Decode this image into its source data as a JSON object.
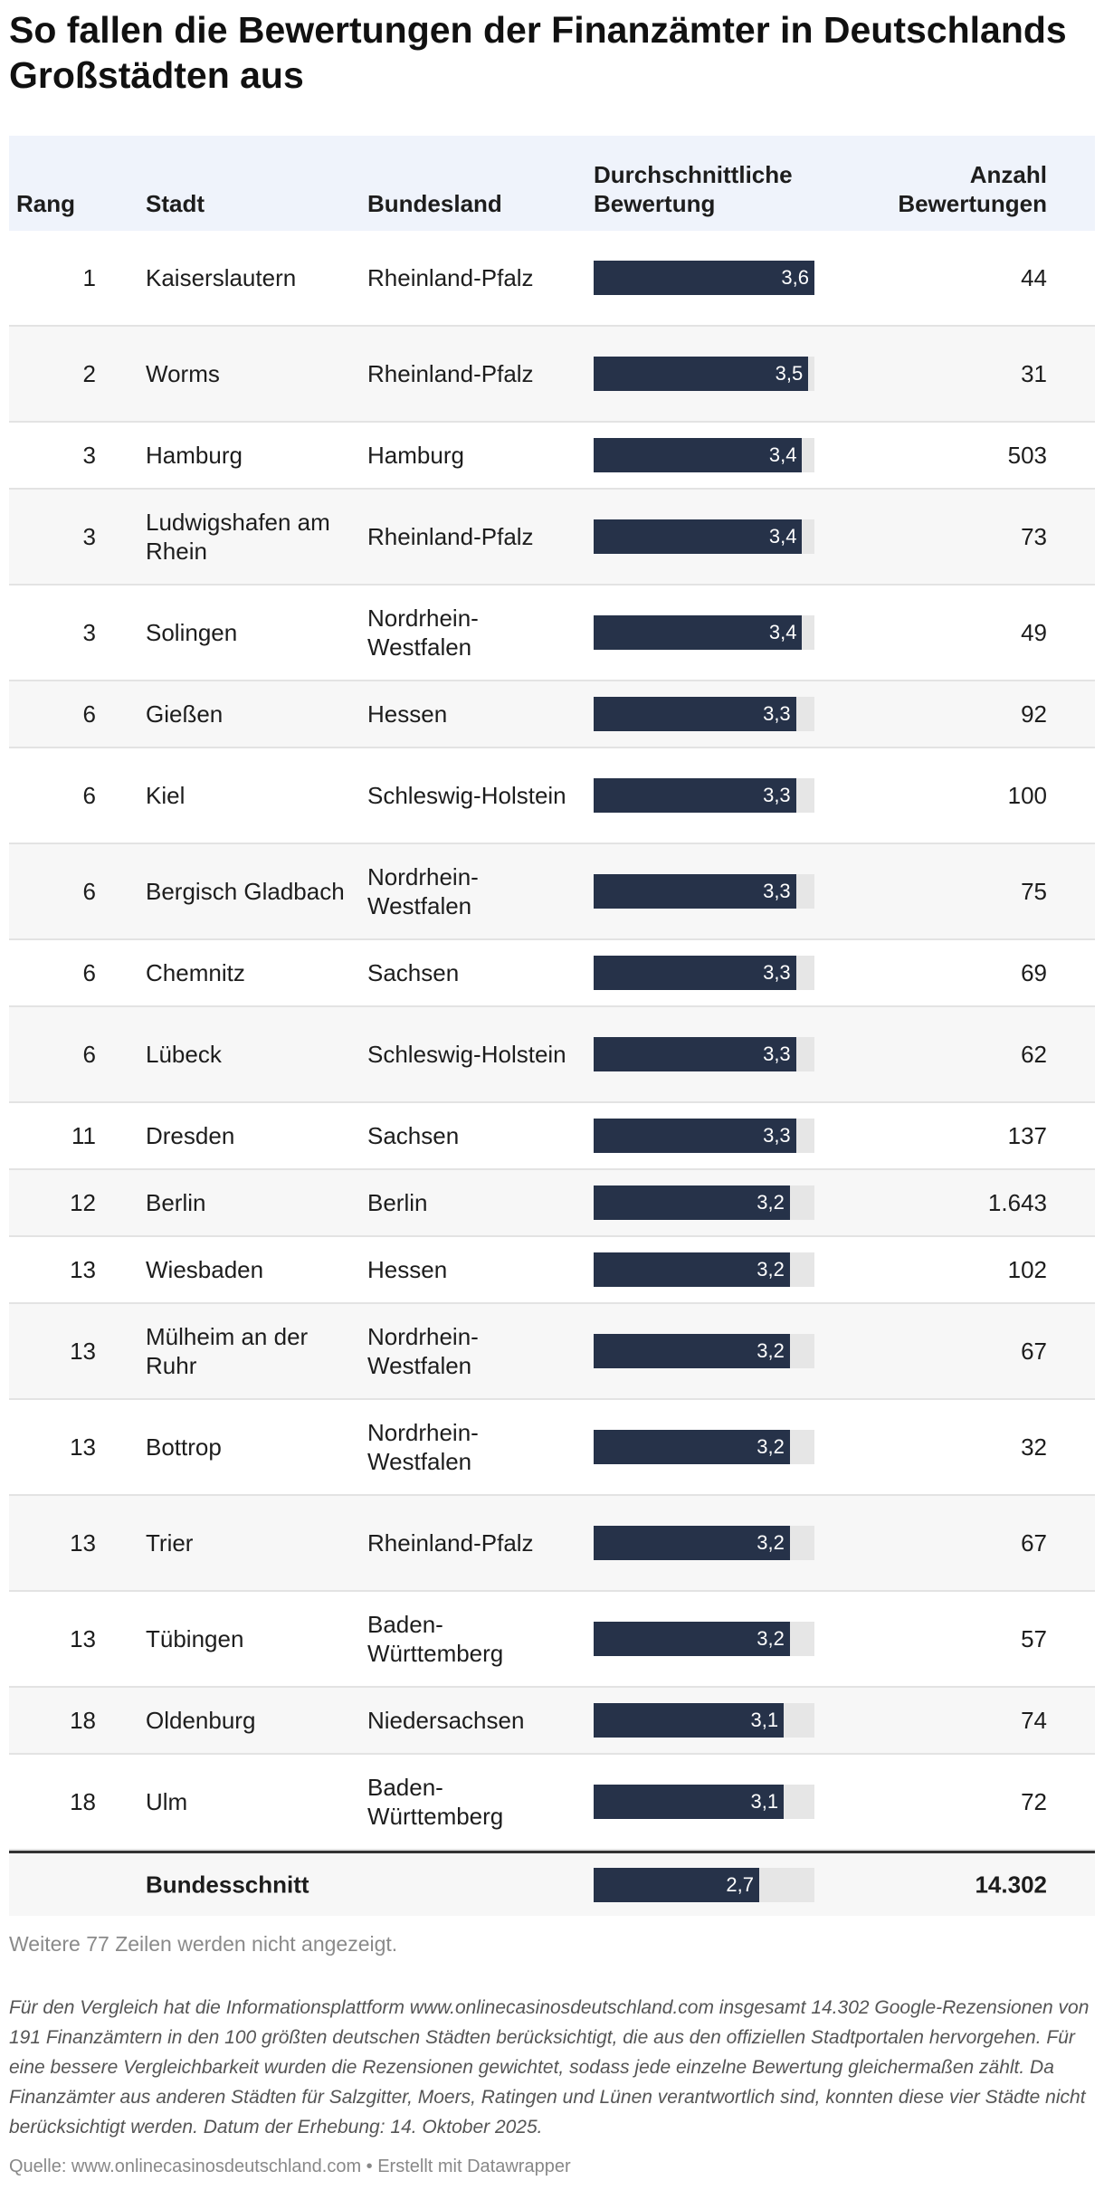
{
  "title": "So fallen die Bewertungen der Finanzämter in Deutschlands Großstädten aus",
  "columns": {
    "rang": "Rang",
    "stadt": "Stadt",
    "bundesland": "Bundesland",
    "bewertung": "Durchschnittliche Bewertung",
    "anzahl": "Anzahl Bewertungen"
  },
  "chart_data": {
    "type": "table",
    "xlim": [
      0,
      3.6
    ],
    "bar_color": "#263249",
    "bar_bg": "#e6e6e6",
    "header_bg": "#eff3fb",
    "rows": [
      {
        "rang": "1",
        "stadt": "Kaiserslautern",
        "bundesland": "Rheinland-Pfalz",
        "bewertung": 3.6,
        "label": "3,6",
        "anzahl": "44"
      },
      {
        "rang": "2",
        "stadt": "Worms",
        "bundesland": "Rheinland-Pfalz",
        "bewertung": 3.5,
        "label": "3,5",
        "anzahl": "31"
      },
      {
        "rang": "3",
        "stadt": "Hamburg",
        "bundesland": "Hamburg",
        "bewertung": 3.4,
        "label": "3,4",
        "anzahl": "503"
      },
      {
        "rang": "3",
        "stadt": "Ludwigshafen am Rhein",
        "bundesland": "Rheinland-Pfalz",
        "bewertung": 3.4,
        "label": "3,4",
        "anzahl": "73"
      },
      {
        "rang": "3",
        "stadt": "Solingen",
        "bundesland": "Nordrhein-Westfalen",
        "bewertung": 3.4,
        "label": "3,4",
        "anzahl": "49"
      },
      {
        "rang": "6",
        "stadt": "Gießen",
        "bundesland": "Hessen",
        "bewertung": 3.3,
        "label": "3,3",
        "anzahl": "92"
      },
      {
        "rang": "6",
        "stadt": "Kiel",
        "bundesland": "Schleswig-Holstein",
        "bewertung": 3.3,
        "label": "3,3",
        "anzahl": "100"
      },
      {
        "rang": "6",
        "stadt": "Bergisch Gladbach",
        "bundesland": "Nordrhein-Westfalen",
        "bewertung": 3.3,
        "label": "3,3",
        "anzahl": "75"
      },
      {
        "rang": "6",
        "stadt": "Chemnitz",
        "bundesland": "Sachsen",
        "bewertung": 3.3,
        "label": "3,3",
        "anzahl": "69"
      },
      {
        "rang": "6",
        "stadt": "Lübeck",
        "bundesland": "Schleswig-Holstein",
        "bewertung": 3.3,
        "label": "3,3",
        "anzahl": "62"
      },
      {
        "rang": "11",
        "stadt": "Dresden",
        "bundesland": "Sachsen",
        "bewertung": 3.3,
        "label": "3,3",
        "anzahl": "137"
      },
      {
        "rang": "12",
        "stadt": "Berlin",
        "bundesland": "Berlin",
        "bewertung": 3.2,
        "label": "3,2",
        "anzahl": "1.643"
      },
      {
        "rang": "13",
        "stadt": "Wiesbaden",
        "bundesland": "Hessen",
        "bewertung": 3.2,
        "label": "3,2",
        "anzahl": "102"
      },
      {
        "rang": "13",
        "stadt": "Mülheim an der Ruhr",
        "bundesland": "Nordrhein-Westfalen",
        "bewertung": 3.2,
        "label": "3,2",
        "anzahl": "67"
      },
      {
        "rang": "13",
        "stadt": "Bottrop",
        "bundesland": "Nordrhein-Westfalen",
        "bewertung": 3.2,
        "label": "3,2",
        "anzahl": "32"
      },
      {
        "rang": "13",
        "stadt": "Trier",
        "bundesland": "Rheinland-Pfalz",
        "bewertung": 3.2,
        "label": "3,2",
        "anzahl": "67"
      },
      {
        "rang": "13",
        "stadt": "Tübingen",
        "bundesland": "Baden-Württemberg",
        "bewertung": 3.2,
        "label": "3,2",
        "anzahl": "57"
      },
      {
        "rang": "18",
        "stadt": "Oldenburg",
        "bundesland": "Niedersachsen",
        "bewertung": 3.1,
        "label": "3,1",
        "anzahl": "74"
      },
      {
        "rang": "18",
        "stadt": "Ulm",
        "bundesland": "Baden-Württemberg",
        "bewertung": 3.1,
        "label": "3,1",
        "anzahl": "72"
      }
    ],
    "total": {
      "stadt": "Bundesschnitt",
      "bewertung": 2.7,
      "label": "2,7",
      "anzahl": "14.302"
    }
  },
  "more_rows": "Weitere 77 Zeilen werden nicht angezeigt.",
  "notes": "Für den Vergleich hat die Informationsplattform www.onlinecasinosdeutschland.com insgesamt 14.302 Google-Rezensionen von 191 Finanzämtern in den 100 größten deutschen Städten berücksichtigt, die aus den offiziellen Stadtportalen hervorgehen. Für eine bessere Vergleichbarkeit wurden die Rezensionen gewichtet, sodass jede einzelne Bewertung gleichermaßen zählt. Da Finanzämter aus anderen Städten für Salzgitter, Moers, Ratingen und Lünen verantwortlich sind, konnten diese vier Städte nicht berücksichtigt werden. Datum der Erhebung: 14. Oktober 2025.",
  "source": "Quelle: www.onlinecasinosdeutschland.com • Erstellt mit Datawrapper"
}
